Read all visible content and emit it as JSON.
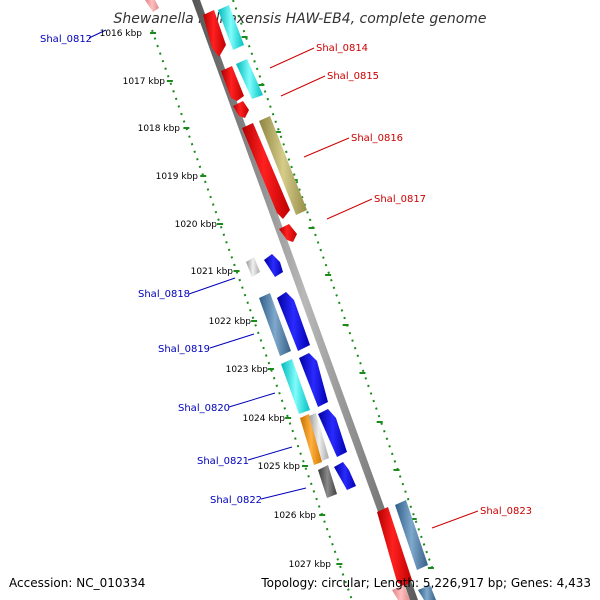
{
  "title": "Shewanella halifaxensis HAW-EB4, complete genome",
  "footer": {
    "accession": "Accession: NC_010334",
    "summary": "Topology: circular; Length: 5,226,917 bp; Genes: 4,433"
  },
  "colors": {
    "backbone": "#8a8a8a",
    "tick_track": "#1a8a1a",
    "forward_label": "#cc0000",
    "reverse_label": "#0000bb"
  },
  "ticks": [
    {
      "label": "1016 kbp",
      "kbp": 1016
    },
    {
      "label": "1017 kbp",
      "kbp": 1017
    },
    {
      "label": "1018 kbp",
      "kbp": 1018
    },
    {
      "label": "1019 kbp",
      "kbp": 1019
    },
    {
      "label": "1020 kbp",
      "kbp": 1020
    },
    {
      "label": "1021 kbp",
      "kbp": 1021
    },
    {
      "label": "1022 kbp",
      "kbp": 1022
    },
    {
      "label": "1023 kbp",
      "kbp": 1023
    },
    {
      "label": "1024 kbp",
      "kbp": 1024
    },
    {
      "label": "1025 kbp",
      "kbp": 1025
    },
    {
      "label": "1026 kbp",
      "kbp": 1026
    },
    {
      "label": "1027 kbp",
      "kbp": 1027
    }
  ],
  "genes": [
    {
      "label": "Shal_0812",
      "strand": "reverse"
    },
    {
      "label": "Shal_0814",
      "strand": "forward"
    },
    {
      "label": "Shal_0815",
      "strand": "forward"
    },
    {
      "label": "Shal_0816",
      "strand": "forward"
    },
    {
      "label": "Shal_0817",
      "strand": "forward"
    },
    {
      "label": "Shal_0818",
      "strand": "reverse"
    },
    {
      "label": "Shal_0819",
      "strand": "reverse"
    },
    {
      "label": "Shal_0820",
      "strand": "reverse"
    },
    {
      "label": "Shal_0821",
      "strand": "reverse"
    },
    {
      "label": "Shal_0822",
      "strand": "reverse"
    },
    {
      "label": "Shal_0823",
      "strand": "forward"
    }
  ]
}
